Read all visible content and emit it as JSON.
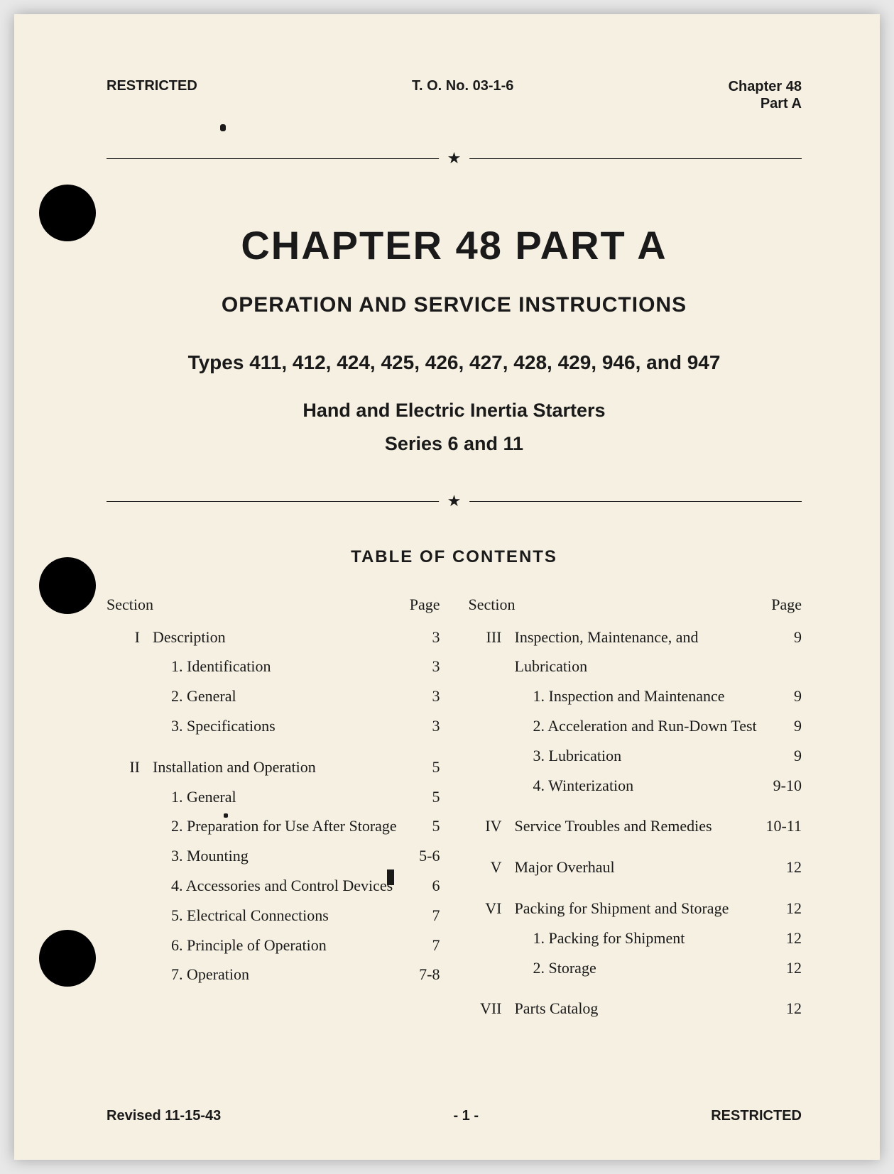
{
  "header": {
    "left": "RESTRICTED",
    "center": "T. O. No. 03-1-6",
    "right_line1": "Chapter 48",
    "right_line2": "Part A"
  },
  "title": {
    "chapter": "CHAPTER 48   PART A",
    "sub1": "OPERATION AND SERVICE INSTRUCTIONS",
    "sub2": "Types 411, 412, 424, 425, 426, 427, 428, 429, 946, and 947",
    "sub3": "Hand and Electric Inertia Starters",
    "sub4": "Series 6 and 11"
  },
  "toc": {
    "heading": "TABLE OF CONTENTS",
    "col_headers": {
      "section": "Section",
      "page": "Page"
    },
    "left": [
      {
        "roman": "I",
        "title": "Description",
        "page": "3",
        "sub": false,
        "spacer_before": false
      },
      {
        "roman": "",
        "title": "1. Identification",
        "page": "3",
        "sub": true,
        "spacer_before": false
      },
      {
        "roman": "",
        "title": "2. General",
        "page": "3",
        "sub": true,
        "spacer_before": false
      },
      {
        "roman": "",
        "title": "3. Specifications",
        "page": "3",
        "sub": true,
        "spacer_before": false
      },
      {
        "roman": "II",
        "title": "Installation and Operation",
        "page": "5",
        "sub": false,
        "spacer_before": true
      },
      {
        "roman": "",
        "title": "1. General",
        "page": "5",
        "sub": true,
        "spacer_before": false
      },
      {
        "roman": "",
        "title": "2. Preparation for Use After Storage",
        "page": "5",
        "sub": true,
        "spacer_before": false
      },
      {
        "roman": "",
        "title": "3. Mounting",
        "page": "5-6",
        "sub": true,
        "spacer_before": false
      },
      {
        "roman": "",
        "title": "4. Accessories and Control Devices",
        "page": "6",
        "sub": true,
        "spacer_before": false
      },
      {
        "roman": "",
        "title": "5. Electrical Connections",
        "page": "7",
        "sub": true,
        "spacer_before": false
      },
      {
        "roman": "",
        "title": "6. Principle of Operation",
        "page": "7",
        "sub": true,
        "spacer_before": false
      },
      {
        "roman": "",
        "title": "7. Operation",
        "page": "7-8",
        "sub": true,
        "spacer_before": false
      }
    ],
    "right": [
      {
        "roman": "III",
        "title": "Inspection, Maintenance, and Lubrication",
        "page": "9",
        "sub": false,
        "spacer_before": false
      },
      {
        "roman": "",
        "title": "1. Inspection and Maintenance",
        "page": "9",
        "sub": true,
        "spacer_before": false
      },
      {
        "roman": "",
        "title": "2. Acceleration and Run-Down Test",
        "page": "9",
        "sub": true,
        "spacer_before": false
      },
      {
        "roman": "",
        "title": "3. Lubrication",
        "page": "9",
        "sub": true,
        "spacer_before": false
      },
      {
        "roman": "",
        "title": "4. Winterization",
        "page": "9-10",
        "sub": true,
        "spacer_before": false
      },
      {
        "roman": "IV",
        "title": "Service Troubles and Remedies",
        "page": "10-11",
        "sub": false,
        "spacer_before": true
      },
      {
        "roman": "V",
        "title": "Major Overhaul",
        "page": "12",
        "sub": false,
        "spacer_before": true
      },
      {
        "roman": "VI",
        "title": "Packing for Shipment and Storage",
        "page": "12",
        "sub": false,
        "spacer_before": true
      },
      {
        "roman": "",
        "title": "1. Packing for Shipment",
        "page": "12",
        "sub": true,
        "spacer_before": false
      },
      {
        "roman": "",
        "title": "2. Storage",
        "page": "12",
        "sub": true,
        "spacer_before": false
      },
      {
        "roman": "VII",
        "title": "Parts Catalog",
        "page": "12",
        "sub": false,
        "spacer_before": true
      }
    ]
  },
  "footer": {
    "left": "Revised 11-15-43",
    "center": "- 1 -",
    "right": "RESTRICTED"
  },
  "colors": {
    "page_bg": "#f5f0e1",
    "text": "#1a1a1a",
    "hole": "#000000"
  }
}
